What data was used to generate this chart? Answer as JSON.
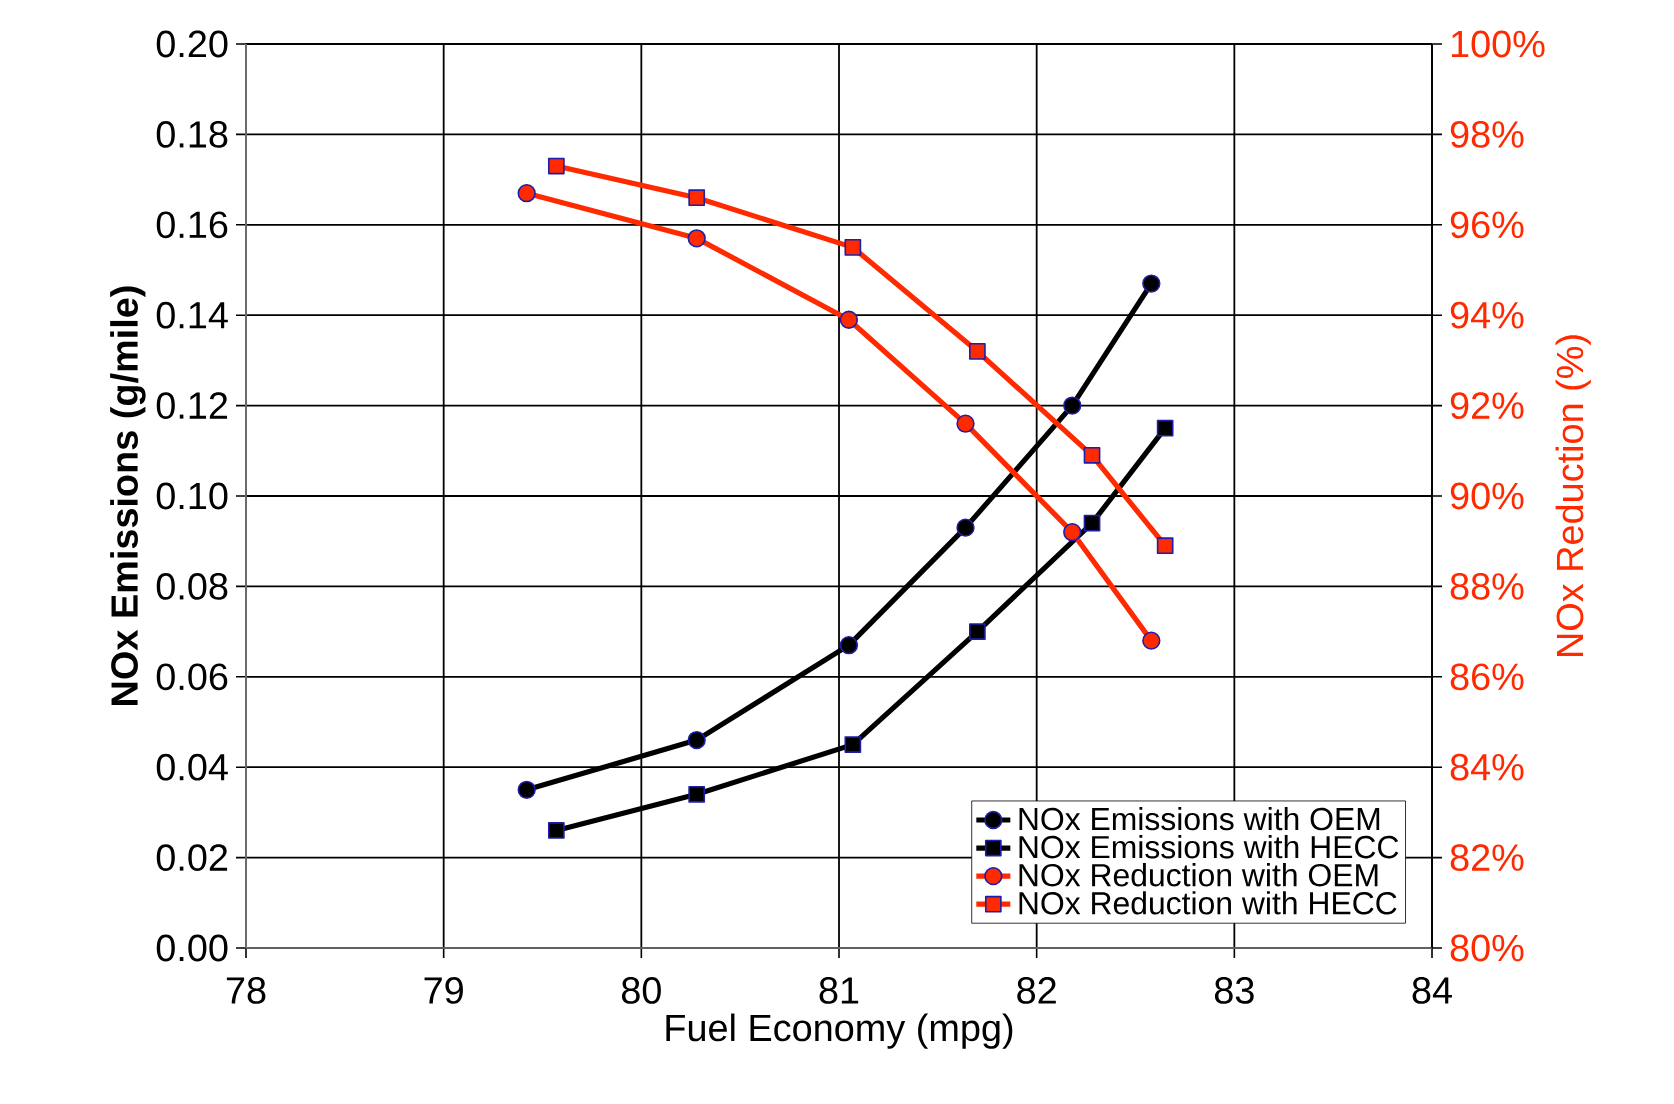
{
  "chart_data": {
    "type": "line",
    "xlabel": "Fuel Economy (mpg)",
    "ylabel": "NOx Emissions (g/mile)",
    "y2label": "NOx Reduction (%)",
    "xlim": [
      78,
      84
    ],
    "xticks": [
      78,
      79,
      80,
      81,
      82,
      83,
      84
    ],
    "ylim": [
      0,
      0.2
    ],
    "yticks": [
      {
        "value": 0,
        "label": "0.00"
      },
      {
        "value": 0.02,
        "label": "0.02"
      },
      {
        "value": 0.04,
        "label": "0.04"
      },
      {
        "value": 0.06,
        "label": "0.06"
      },
      {
        "value": 0.08,
        "label": "0.08"
      },
      {
        "value": 0.1,
        "label": "0.10"
      },
      {
        "value": 0.12,
        "label": "0.12"
      },
      {
        "value": 0.14,
        "label": "0.14"
      },
      {
        "value": 0.16,
        "label": "0.16"
      },
      {
        "value": 0.18,
        "label": "0.18"
      },
      {
        "value": 0.2,
        "label": "0.20"
      }
    ],
    "y2lim": [
      80,
      100
    ],
    "y2ticks": [
      {
        "value": 80,
        "label": "80%"
      },
      {
        "value": 82,
        "label": "82%"
      },
      {
        "value": 84,
        "label": "84%"
      },
      {
        "value": 86,
        "label": "86%"
      },
      {
        "value": 88,
        "label": "88%"
      },
      {
        "value": 90,
        "label": "90%"
      },
      {
        "value": 92,
        "label": "92%"
      },
      {
        "value": 94,
        "label": "94%"
      },
      {
        "value": 96,
        "label": "96%"
      },
      {
        "value": 98,
        "label": "98%"
      },
      {
        "value": 100,
        "label": "100%"
      }
    ],
    "grid": true,
    "legend": "bottom right",
    "line_style": "solid",
    "series": [
      {
        "name": "NOx Emissions with OEM",
        "color": "#000000",
        "marker": "circle",
        "x": [
          79.42,
          80.28,
          81.05,
          81.64,
          82.18,
          82.58
        ],
        "values": [
          0.035,
          0.046,
          0.067,
          0.093,
          0.12,
          0.147
        ]
      },
      {
        "name": "NOx Emissions with HECC",
        "color": "#000000",
        "marker": "square",
        "x": [
          79.57,
          80.28,
          81.07,
          81.7,
          82.28,
          82.65
        ],
        "values": [
          0.026,
          0.034,
          0.045,
          0.07,
          0.094,
          0.115
        ]
      },
      {
        "name": "NOx Reduction with OEM",
        "color": "#ff2a00",
        "marker": "circle",
        "axis": "y2",
        "x": [
          79.42,
          80.28,
          81.05,
          81.64,
          82.18,
          82.58
        ],
        "values": [
          96.7,
          95.7,
          93.9,
          91.6,
          89.2,
          86.8
        ]
      },
      {
        "name": "NOx Reduction with HECC",
        "color": "#ff2a00",
        "marker": "square",
        "axis": "y2",
        "x": [
          79.57,
          80.28,
          81.07,
          81.7,
          82.28,
          82.65
        ],
        "values": [
          97.3,
          96.6,
          95.5,
          93.2,
          90.9,
          88.9
        ]
      }
    ]
  }
}
